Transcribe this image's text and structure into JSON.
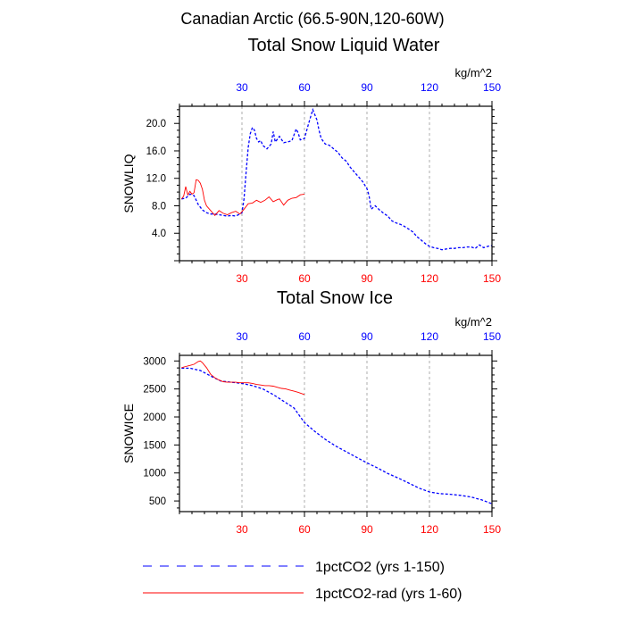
{
  "suptitle": "Canadian Arctic (66.5-90N,120-60W)",
  "legend": {
    "position": "bottom",
    "items": [
      {
        "label": "1pctCO2 (yrs 1-150)",
        "color": "#0000ff",
        "dash": "dashed"
      },
      {
        "label": "1pctCO2-rad (yrs 1-60)",
        "color": "#ff0000",
        "dash": "solid"
      }
    ]
  },
  "chart_data": [
    {
      "type": "line",
      "title": "Total Snow Liquid Water",
      "ylabel": "SNOWLIQ",
      "units": "kg/m^2",
      "xlim": [
        0,
        150
      ],
      "ylim": [
        0,
        22.5
      ],
      "x_ticks": [
        30,
        60,
        90,
        120,
        150
      ],
      "x_tick_labels": [
        "30",
        "60",
        "90",
        "120",
        "150"
      ],
      "bottom_axis_color": "#ff0000",
      "top_axis_color": "#0000ff",
      "y_ticks": [
        4,
        8,
        12,
        16,
        20
      ],
      "y_tick_labels": [
        "4.0",
        "8.0",
        "12.0",
        "16.0",
        "20.0"
      ],
      "vertical_grid": [
        30,
        60,
        90,
        120
      ],
      "series": [
        {
          "name": "1pctCO2 (yrs 1-150)",
          "color": "#0000ff",
          "dash": "dashed",
          "x": [
            1,
            3,
            5,
            7,
            9,
            11,
            13,
            15,
            17,
            19,
            21,
            23,
            25,
            27,
            29,
            30,
            31,
            32,
            33,
            34,
            35,
            36,
            37,
            38,
            39,
            40,
            42,
            44,
            45,
            46,
            48,
            50,
            52,
            54,
            56,
            57,
            58,
            60,
            62,
            64,
            66,
            67,
            68,
            70,
            72,
            74,
            76,
            78,
            80,
            82,
            84,
            86,
            88,
            90,
            91,
            92,
            94,
            96,
            98,
            100,
            102,
            104,
            106,
            108,
            110,
            112,
            114,
            116,
            118,
            120,
            122,
            124,
            126,
            128,
            130,
            132,
            134,
            136,
            138,
            140,
            142,
            144,
            146,
            148,
            150
          ],
          "values": [
            9.0,
            9.1,
            9.7,
            9.5,
            8.2,
            7.4,
            7.0,
            6.8,
            6.8,
            6.7,
            6.6,
            6.5,
            6.6,
            6.5,
            6.8,
            7.0,
            9.0,
            13.0,
            16.5,
            18.5,
            19.4,
            19.0,
            17.8,
            17.3,
            17.5,
            16.8,
            16.3,
            17.0,
            18.8,
            17.3,
            18.1,
            17.2,
            17.3,
            17.5,
            19.2,
            18.6,
            17.6,
            17.8,
            20.0,
            22.0,
            20.5,
            19.0,
            17.8,
            17.0,
            16.8,
            16.3,
            15.8,
            15.0,
            14.5,
            13.6,
            12.9,
            12.2,
            11.5,
            10.5,
            9.5,
            7.5,
            8.0,
            7.4,
            6.9,
            6.5,
            5.8,
            5.5,
            5.3,
            5.0,
            4.6,
            4.2,
            3.5,
            3.0,
            2.5,
            2.1,
            1.9,
            1.8,
            1.6,
            1.7,
            1.8,
            1.8,
            1.9,
            1.9,
            2.0,
            2.0,
            1.8,
            2.3,
            1.9,
            2.1,
            2.2
          ]
        },
        {
          "name": "1pctCO2-rad (yrs 1-60)",
          "color": "#ff0000",
          "dash": "solid",
          "x": [
            1,
            2,
            3,
            4,
            5,
            6,
            7,
            8,
            9,
            10,
            11,
            12,
            13,
            15,
            17,
            19,
            21,
            23,
            25,
            27,
            29,
            31,
            33,
            35,
            37,
            39,
            41,
            43,
            45,
            47,
            48,
            50,
            52,
            54,
            56,
            58,
            60
          ],
          "values": [
            9.0,
            9.4,
            10.8,
            9.6,
            10.1,
            9.7,
            9.9,
            11.8,
            11.7,
            11.3,
            10.4,
            8.8,
            8.0,
            7.3,
            6.6,
            7.3,
            6.9,
            6.7,
            7.0,
            7.2,
            6.8,
            7.5,
            8.3,
            8.4,
            8.8,
            8.5,
            8.8,
            9.3,
            8.6,
            8.9,
            9.0,
            8.1,
            8.8,
            9.1,
            9.2,
            9.6,
            9.7
          ]
        }
      ]
    },
    {
      "type": "line",
      "title": "Total Snow Ice",
      "ylabel": "SNOWICE",
      "units": "kg/m^2",
      "xlim": [
        0,
        150
      ],
      "ylim": [
        310,
        3100
      ],
      "x_ticks": [
        30,
        60,
        90,
        120,
        150
      ],
      "x_tick_labels": [
        "30",
        "60",
        "90",
        "120",
        "150"
      ],
      "bottom_axis_color": "#ff0000",
      "top_axis_color": "#0000ff",
      "y_ticks": [
        500,
        1000,
        1500,
        2000,
        2500,
        3000
      ],
      "y_tick_labels": [
        "500",
        "1000",
        "1500",
        "2000",
        "2500",
        "3000"
      ],
      "vertical_grid": [
        30,
        60,
        90,
        120
      ],
      "series": [
        {
          "name": "1pctCO2 (yrs 1-150)",
          "color": "#0000ff",
          "dash": "dashed",
          "x": [
            1,
            5,
            10,
            15,
            20,
            25,
            30,
            35,
            40,
            45,
            50,
            55,
            60,
            65,
            70,
            75,
            80,
            85,
            90,
            95,
            100,
            105,
            110,
            115,
            120,
            125,
            130,
            135,
            140,
            145,
            150
          ],
          "values": [
            2870,
            2870,
            2830,
            2730,
            2640,
            2620,
            2600,
            2560,
            2500,
            2400,
            2280,
            2160,
            1900,
            1740,
            1600,
            1480,
            1380,
            1280,
            1180,
            1090,
            990,
            910,
            820,
            730,
            660,
            630,
            620,
            600,
            570,
            520,
            450
          ]
        },
        {
          "name": "1pctCO2-rad (yrs 1-60)",
          "color": "#ff0000",
          "dash": "solid",
          "x": [
            1,
            3,
            5,
            7,
            9,
            10,
            11,
            13,
            15,
            17,
            19,
            21,
            23,
            25,
            27,
            29,
            31,
            33,
            35,
            37,
            39,
            41,
            43,
            45,
            47,
            49,
            51,
            53,
            55,
            57,
            60
          ],
          "values": [
            2880,
            2900,
            2920,
            2940,
            2990,
            3000,
            2970,
            2880,
            2760,
            2700,
            2660,
            2630,
            2620,
            2620,
            2620,
            2610,
            2610,
            2610,
            2600,
            2580,
            2570,
            2560,
            2560,
            2550,
            2530,
            2510,
            2500,
            2480,
            2460,
            2440,
            2400
          ]
        }
      ]
    }
  ]
}
